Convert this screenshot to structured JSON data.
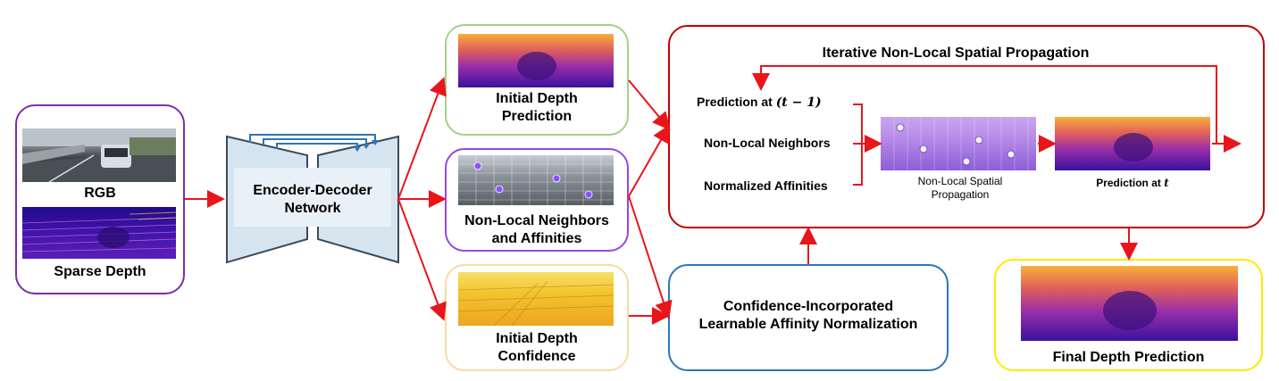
{
  "colors": {
    "input_box": "#7b2fa8",
    "initial_depth_box": "#a6d08a",
    "neighbors_box": "#9b45e0",
    "confidence_box": "#f7dda0",
    "cialan_box": "#2e75b6",
    "propagation_box": "#c00000",
    "final_box": "#ffea00",
    "arrow": "#e8151b",
    "skip_arrow": "#2e75b6",
    "network_fill": "#d6e4f0",
    "network_stroke": "#4a5a6a"
  },
  "inputs": {
    "rgb_label": "RGB",
    "sparse_label": "Sparse Depth"
  },
  "network": {
    "label": "Encoder-Decoder Network"
  },
  "outputs": {
    "initial_depth": "Initial Depth Prediction",
    "neighbors": "Non-Local Neighbors and Affinities",
    "confidence": "Initial Depth Confidence"
  },
  "normalization": {
    "label": "Confidence-Incorporated Learnable Affinity Normalization"
  },
  "propagation": {
    "title": "Iterative Non-Local Spatial Propagation",
    "inputs": [
      "Prediction at",
      "Non-Local Neighbors",
      "Normalized Affinities"
    ],
    "prediction_prev_math": "(t − 1)",
    "nlsp_caption": "Non-Local Spatial Propagation",
    "pred_t_caption": "Prediction at",
    "pred_t_var": "t"
  },
  "final": {
    "label": "Final Depth Prediction"
  }
}
